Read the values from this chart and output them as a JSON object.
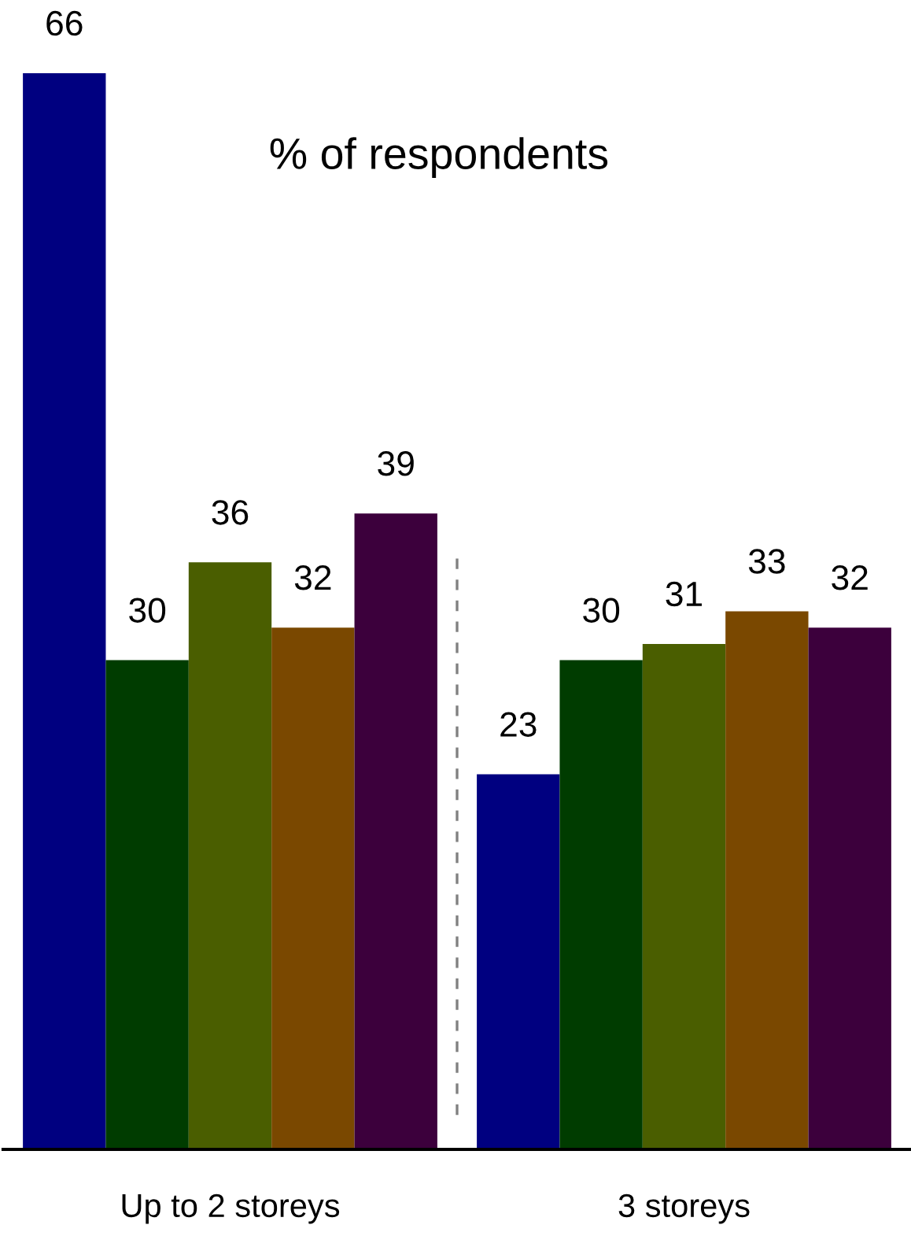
{
  "chart_data": {
    "type": "bar",
    "title": "% of respondents",
    "categories": [
      "Up to 2 storeys",
      "3 storeys"
    ],
    "series": [
      {
        "color": "#000080",
        "values": [
          66,
          23
        ]
      },
      {
        "color": "#003c00",
        "values": [
          30,
          30
        ]
      },
      {
        "color": "#4a5e00",
        "values": [
          36,
          31
        ]
      },
      {
        "color": "#7a4800",
        "values": [
          32,
          33
        ]
      },
      {
        "color": "#3c003c",
        "values": [
          39,
          32
        ]
      }
    ],
    "data_labels": true,
    "tick_labels": "x"
  }
}
